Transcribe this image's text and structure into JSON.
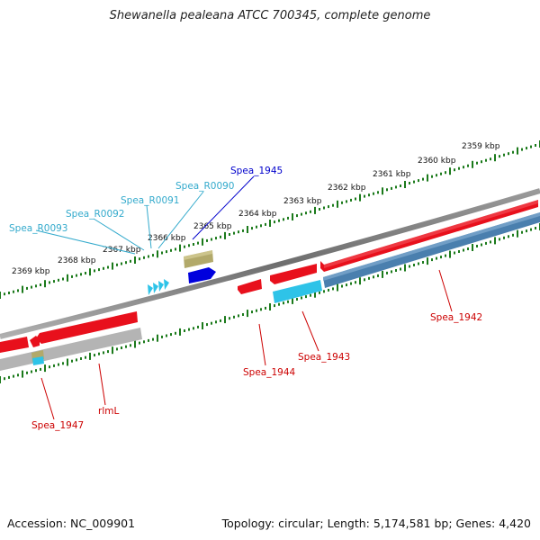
{
  "title": "Shewanella pealeana ATCC 700345, complete genome",
  "footer": {
    "accession": "Accession: NC_009901",
    "summary": "Topology: circular; Length: 5,174,581 bp; Genes: 4,420"
  },
  "ruler_labels": [
    "2359 kbp",
    "2360 kbp",
    "2361 kbp",
    "2362 kbp",
    "2363 kbp",
    "2364 kbp",
    "2365 kbp",
    "2366 kbp",
    "2367 kbp",
    "2368 kbp",
    "2369 kbp"
  ],
  "feature_labels": {
    "spea_1945": "Spea_1945",
    "spea_r0090": "Spea_R0090",
    "spea_r0091": "Spea_R0091",
    "spea_r0092": "Spea_R0092",
    "spea_r0093": "Spea_R0093",
    "spea_1942": "Spea_1942",
    "spea_1943": "Spea_1943",
    "spea_1944": "Spea_1944",
    "spea_1947": "Spea_1947",
    "rlml": "rlmL"
  },
  "colors": {
    "cds": "#e8101c",
    "cds_dark": "#a80a12",
    "rna": "#2ec3e8",
    "highlight": "#0000dd",
    "label_red": "#cc0000",
    "label_cyan": "#33aacc",
    "label_blue": "#0000cc",
    "backbone": "#888888",
    "ticks": "#1b7a1b",
    "steel": "#4a7fae",
    "grey": "#b4b4b4",
    "olive": "#b2a96a"
  }
}
